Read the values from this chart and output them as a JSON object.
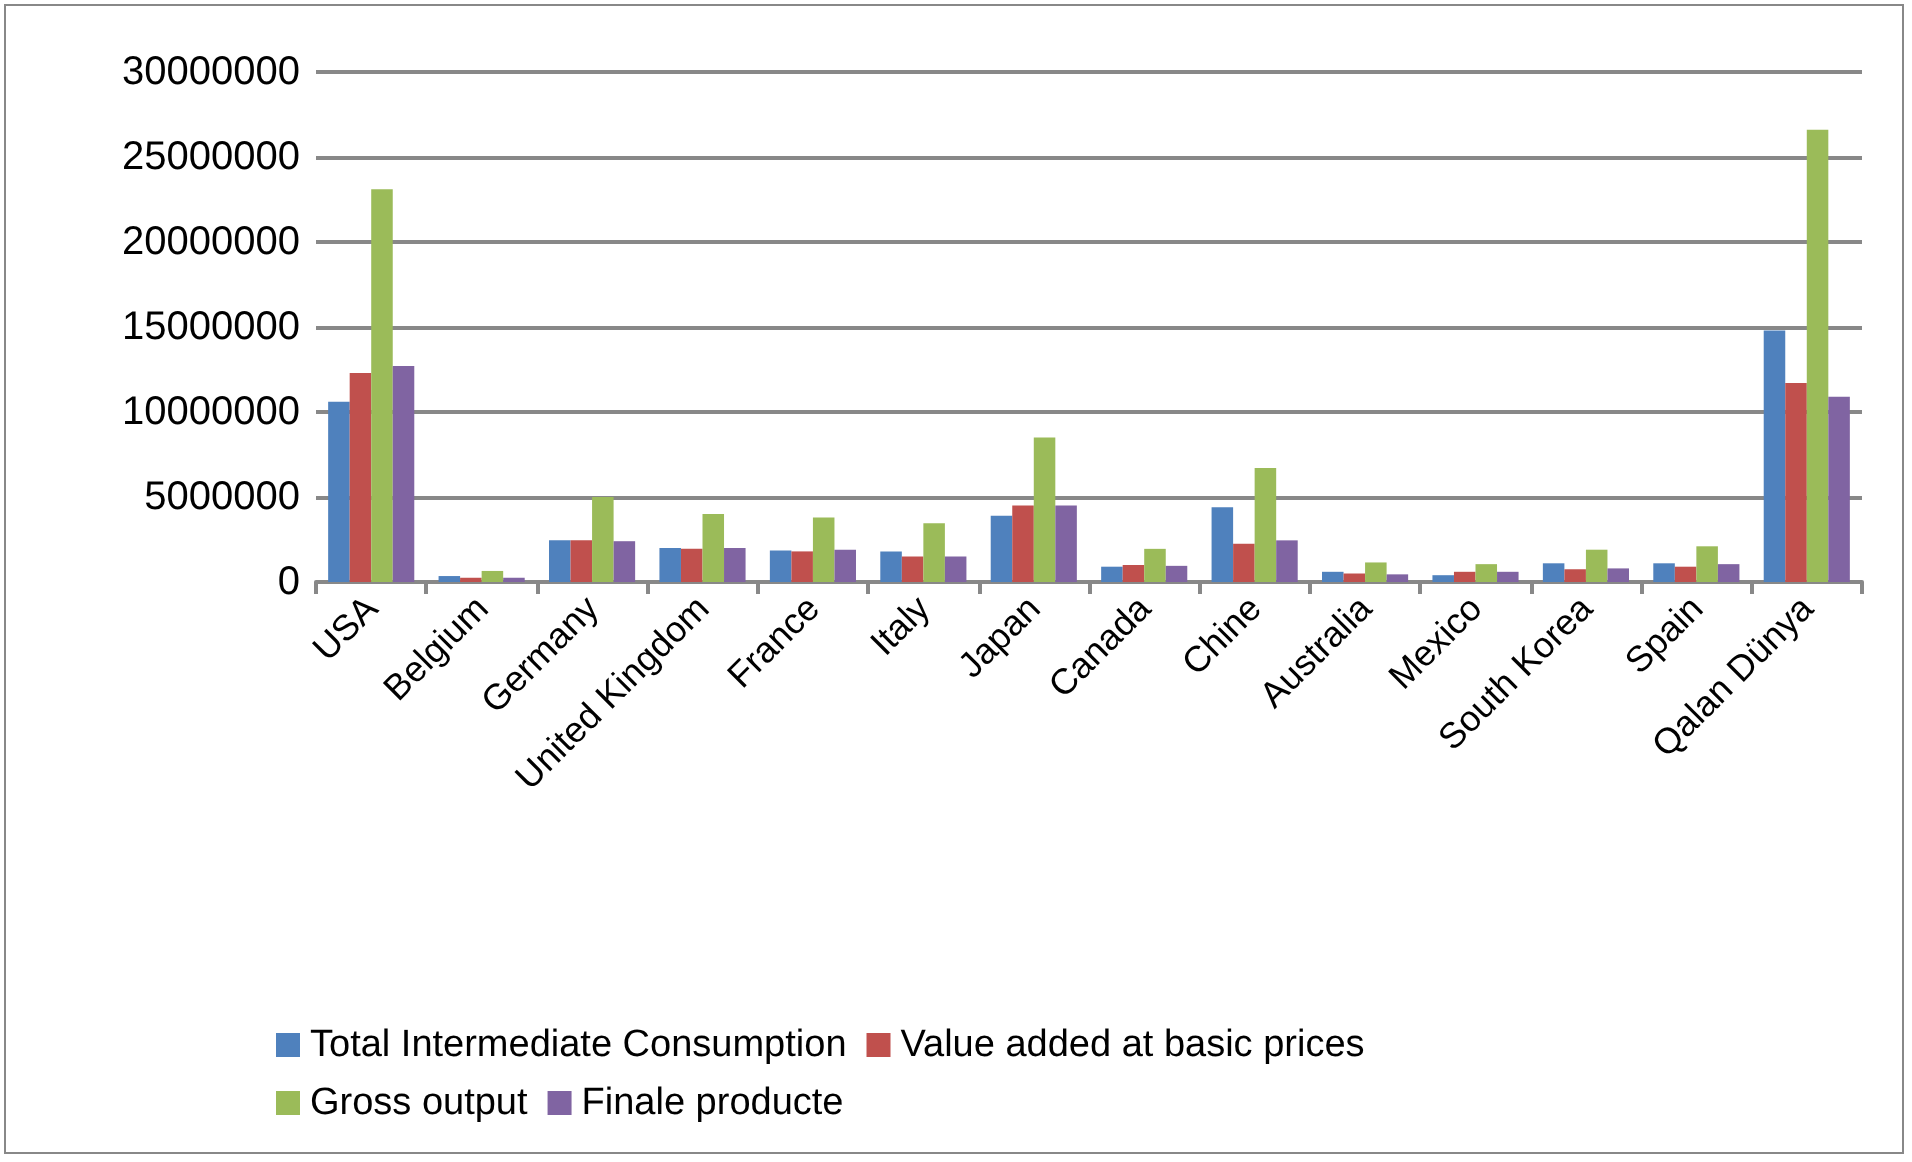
{
  "chart_data": {
    "type": "bar",
    "categories": [
      "USA",
      "Belgium",
      "Germany",
      "United Kingdom",
      "France",
      "Italy",
      "Japan",
      "Canada",
      "Chine",
      "Australia",
      "Mexico",
      "South Korea",
      "Spain",
      "Qalan Dünya"
    ],
    "series": [
      {
        "name": "Total Intermediate Consumption",
        "color": "#4f81bd",
        "values": [
          10600000,
          350000,
          2450000,
          2000000,
          1850000,
          1800000,
          3900000,
          900000,
          4400000,
          600000,
          400000,
          1100000,
          1100000,
          14800000
        ]
      },
      {
        "name": "Value added at basic prices",
        "color": "#c0504d",
        "values": [
          12300000,
          250000,
          2450000,
          1950000,
          1800000,
          1500000,
          4500000,
          1000000,
          2250000,
          500000,
          600000,
          750000,
          900000,
          11700000
        ]
      },
      {
        "name": "Gross output",
        "color": "#9bbb59",
        "values": [
          23100000,
          650000,
          5000000,
          4000000,
          3800000,
          3450000,
          8500000,
          1950000,
          6700000,
          1150000,
          1050000,
          1900000,
          2100000,
          26600000
        ]
      },
      {
        "name": "Finale producte",
        "color": "#8064a2",
        "values": [
          12700000,
          250000,
          2400000,
          2000000,
          1900000,
          1500000,
          4500000,
          950000,
          2450000,
          450000,
          600000,
          800000,
          1050000,
          10900000
        ]
      }
    ],
    "ylim": [
      0,
      30000000
    ],
    "yticks": [
      0,
      5000000,
      10000000,
      15000000,
      20000000,
      25000000,
      30000000
    ],
    "grid": "y",
    "legend": "bottom"
  }
}
